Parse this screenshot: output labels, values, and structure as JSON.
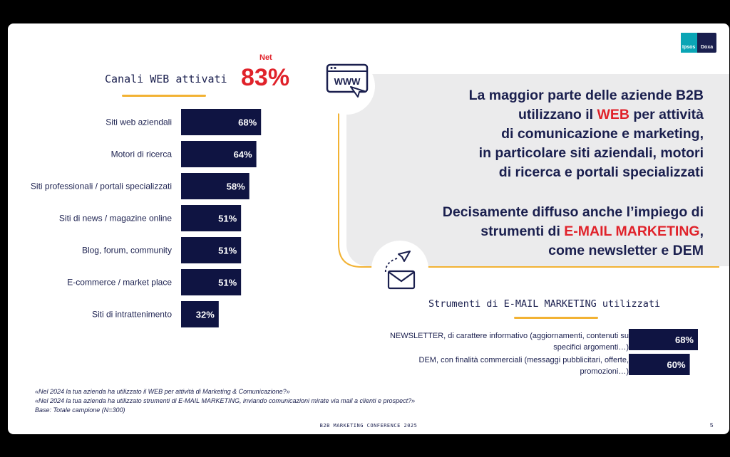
{
  "header": {
    "title": "Canali WEB attivati",
    "net_label": "Net",
    "net_value": "83%"
  },
  "logo": {
    "left_text": "Ipsos",
    "right_text": "Doxa"
  },
  "panel": {
    "text1_parts": [
      "La maggior parte delle aziende B2B",
      "utilizzano il ",
      "WEB",
      " per attività",
      "di comunicazione e marketing,",
      "in particolare siti aziendali, motori",
      "di ricerca e portali specializzati"
    ],
    "text2_parts": [
      "Decisamente diffuso anche l’impiego di",
      "strumenti di ",
      "E-MAIL MARKETING",
      ",",
      "come newsletter e DEM"
    ]
  },
  "icons": {
    "www": "www-browser-icon",
    "mail": "envelope-paperplane-icon"
  },
  "colors": {
    "bar": "#0f1442",
    "accent": "#e0222a",
    "underline": "#f2b233",
    "panel": "#ebebec",
    "text": "#1a1f4e"
  },
  "email": {
    "title": "Strumenti di E-MAIL MARKETING utilizzati",
    "label1": "NEWSLETTER, di carattere informativo (aggiornamenti, contenuti su specifici argomenti…)",
    "label2": "DEM, con finalità commerciali (messaggi pubblicitari, offerte, promozioni…)"
  },
  "footer": {
    "q1": "«Nel 2024 la tua azienda ha utilizzato il WEB per attività di Marketing & Comunicazione?»",
    "q2": "«Nel 2024 la tua azienda ha utilizzato strumenti di E-MAIL MARKETING, inviando comunicazioni mirate via mail a clienti e prospect?»",
    "base": "Base: Totale campione (N=300)",
    "conference": "B2B MARKETING CONFERENCE 2025",
    "page": "5"
  },
  "chart_data": [
    {
      "type": "bar",
      "orientation": "horizontal",
      "categories": [
        "Siti web aziendali",
        "Motori di ricerca",
        "Siti professionali / portali specializzati",
        "Siti di news / magazine online",
        "Blog, forum, community",
        "E-commerce / market place",
        "Siti di intrattenimento"
      ],
      "values": [
        68,
        64,
        58,
        51,
        51,
        51,
        32
      ],
      "value_labels": [
        "68%",
        "64%",
        "58%",
        "51%",
        "51%",
        "51%",
        "32%"
      ],
      "title": "Canali WEB attivati",
      "xlim": [
        0,
        100
      ],
      "grid": false
    },
    {
      "type": "bar",
      "orientation": "horizontal",
      "categories": [
        "NEWSLETTER",
        "DEM"
      ],
      "values": [
        68,
        60
      ],
      "value_labels": [
        "68%",
        "60%"
      ],
      "title": "Strumenti di E-MAIL MARKETING utilizzati",
      "xlim": [
        0,
        100
      ],
      "grid": false
    }
  ]
}
